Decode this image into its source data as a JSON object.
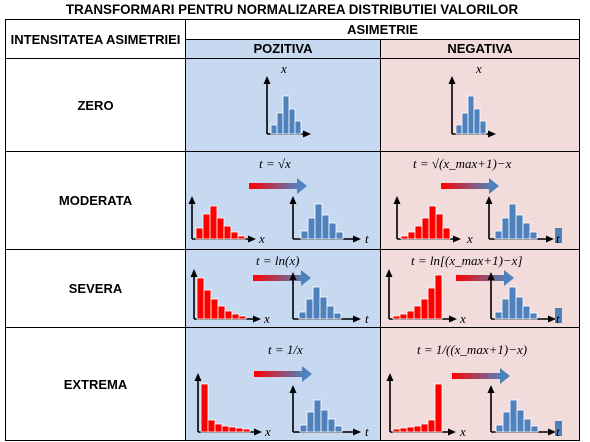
{
  "title": "TRANSFORMARI  PENTRU NORMALIZAREA DISTRIBUTIEI VALORILOR",
  "header": {
    "intensity": "INTENSITATEA ASIMETRIEI",
    "asymmetry": "ASIMETRIE",
    "positive": "POZITIVA",
    "negative": "NEGATIVA"
  },
  "rows": [
    {
      "label": "ZERO",
      "pos_formula": "x",
      "neg_formula": "x"
    },
    {
      "label": "MODERATA",
      "pos_formula": "t = √x",
      "neg_formula": "t = √(x_max+1)−x",
      "orig_axis": "x",
      "new_axis": "t"
    },
    {
      "label": "SEVERA",
      "pos_formula": "t = ln(x)",
      "neg_formula": "t = ln[(x_max+1)−x]",
      "orig_axis": "x",
      "new_axis": "t"
    },
    {
      "label": "EXTREMA",
      "pos_formula": "t = 1/x",
      "neg_formula": "t = 1/((x_max+1)−x)",
      "orig_axis": "x",
      "new_axis": "t"
    }
  ],
  "colors": {
    "positive_bg": "#c6d9f0",
    "negative_bg": "#f2dcdb",
    "skew_bars": "#ff0000",
    "normal_bars": "#4f81bd"
  }
}
